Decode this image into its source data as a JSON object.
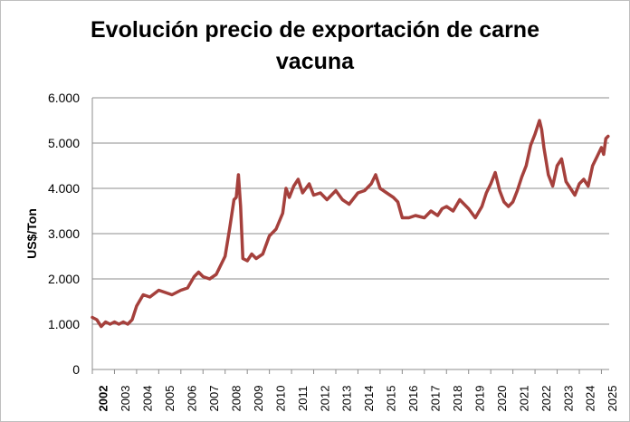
{
  "chart_data": {
    "type": "line",
    "title": "Evolución precio de exportación de carne vacuna",
    "title_lines": [
      "Evolución precio de exportación de carne",
      "vacuna"
    ],
    "xlabel": "",
    "ylabel": "US$/Ton",
    "ylim": [
      0,
      6000
    ],
    "y_ticks": [
      0,
      1000,
      2000,
      3000,
      4000,
      5000,
      6000
    ],
    "y_tick_labels": [
      "0",
      "1.000",
      "2.000",
      "3.000",
      "4.000",
      "5.000",
      "6.000"
    ],
    "x_tick_labels": [
      "2002",
      "2003",
      "2004",
      "2005",
      "2006",
      "2007",
      "2008",
      "2009",
      "2010",
      "2011",
      "2012",
      "2013",
      "2014",
      "2015",
      "2016",
      "2017",
      "2018",
      "2019",
      "2020",
      "2021",
      "2022",
      "2023",
      "2024",
      "2025"
    ],
    "grid": "horizontal",
    "line_color": "#a5403c",
    "series": [
      {
        "x": [
          2002.0,
          2002.2,
          2002.4,
          2002.6,
          2002.8,
          2003.0,
          2003.2,
          2003.4,
          2003.6,
          2003.8,
          2004.0,
          2004.3,
          2004.6,
          2005.0,
          2005.3,
          2005.6,
          2006.0,
          2006.3,
          2006.6,
          2006.8,
          2007.0,
          2007.3,
          2007.6,
          2008.0,
          2008.2,
          2008.4,
          2008.5,
          2008.6,
          2008.7,
          2008.8,
          2009.0,
          2009.2,
          2009.4,
          2009.7,
          2010.0,
          2010.3,
          2010.6,
          2010.75,
          2010.9,
          2011.1,
          2011.3,
          2011.5,
          2011.8,
          2012.0,
          2012.3,
          2012.6,
          2013.0,
          2013.3,
          2013.6,
          2014.0,
          2014.3,
          2014.6,
          2014.8,
          2015.0,
          2015.3,
          2015.6,
          2015.8,
          2016.0,
          2016.3,
          2016.6,
          2017.0,
          2017.3,
          2017.6,
          2017.8,
          2018.0,
          2018.3,
          2018.6,
          2018.8,
          2019.0,
          2019.3,
          2019.6,
          2019.8,
          2020.0,
          2020.2,
          2020.4,
          2020.6,
          2020.8,
          2021.0,
          2021.2,
          2021.4,
          2021.6,
          2021.8,
          2022.0,
          2022.2,
          2022.3,
          2022.4,
          2022.6,
          2022.8,
          2023.0,
          2023.2,
          2023.4,
          2023.6,
          2023.8,
          2024.0,
          2024.2,
          2024.4,
          2024.6,
          2024.8,
          2025.0,
          2025.1,
          2025.2,
          2025.3
        ],
        "values": [
          1150,
          1100,
          950,
          1050,
          1000,
          1050,
          1000,
          1050,
          1000,
          1100,
          1400,
          1650,
          1600,
          1750,
          1700,
          1650,
          1750,
          1800,
          2050,
          2150,
          2050,
          2000,
          2100,
          2500,
          3100,
          3750,
          3800,
          4300,
          3600,
          2450,
          2400,
          2550,
          2450,
          2550,
          2950,
          3100,
          3450,
          4000,
          3800,
          4050,
          4200,
          3900,
          4100,
          3850,
          3900,
          3750,
          3950,
          3750,
          3650,
          3900,
          3950,
          4100,
          4300,
          4000,
          3900,
          3800,
          3700,
          3350,
          3350,
          3400,
          3350,
          3500,
          3400,
          3550,
          3600,
          3500,
          3750,
          3650,
          3550,
          3350,
          3600,
          3900,
          4100,
          4350,
          3950,
          3700,
          3600,
          3700,
          3950,
          4250,
          4500,
          4950,
          5200,
          5500,
          5300,
          4900,
          4300,
          4050,
          4500,
          4650,
          4150,
          4000,
          3850,
          4100,
          4200,
          4050,
          4500,
          4700,
          4900,
          4750,
          5100,
          5150
        ]
      }
    ]
  }
}
